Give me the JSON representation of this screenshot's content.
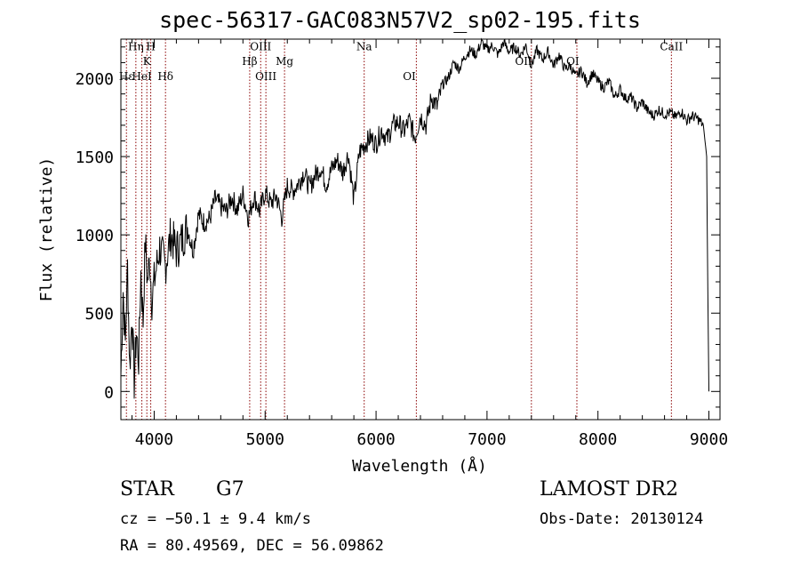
{
  "chart_data": {
    "type": "line",
    "title": "spec-56317-GAC083N57V2_sp02-195.fits",
    "xlabel": "Wavelength (Å)",
    "ylabel": "Flux (relative)",
    "xlim": [
      3700,
      9100
    ],
    "ylim": [
      -180,
      2250
    ],
    "xticks": [
      4000,
      5000,
      6000,
      7000,
      8000,
      9000
    ],
    "yticks": [
      0,
      500,
      1000,
      1500,
      2000
    ],
    "xtick_labels": [
      "4000",
      "5000",
      "6000",
      "7000",
      "8000",
      "9000"
    ],
    "ytick_labels": [
      "0",
      "500",
      "1000",
      "1500",
      "2000"
    ],
    "grid": false,
    "line_color": "#000000",
    "marker_color": "#8b0000",
    "spectrum": {
      "x": [
        3700,
        3720,
        3740,
        3760,
        3780,
        3800,
        3820,
        3840,
        3860,
        3880,
        3900,
        3920,
        3940,
        3960,
        3980,
        4000,
        4050,
        4100,
        4150,
        4200,
        4250,
        4300,
        4350,
        4400,
        4450,
        4500,
        4550,
        4600,
        4650,
        4700,
        4750,
        4800,
        4850,
        4900,
        4950,
        5000,
        5050,
        5100,
        5150,
        5200,
        5250,
        5300,
        5350,
        5400,
        5450,
        5500,
        5550,
        5600,
        5650,
        5700,
        5750,
        5800,
        5850,
        5900,
        5950,
        6000,
        6050,
        6100,
        6150,
        6200,
        6250,
        6300,
        6350,
        6400,
        6450,
        6500,
        6550,
        6600,
        6650,
        6700,
        6750,
        6800,
        6850,
        6900,
        6950,
        7000,
        7050,
        7100,
        7150,
        7200,
        7250,
        7300,
        7350,
        7400,
        7450,
        7500,
        7550,
        7600,
        7650,
        7700,
        7750,
        7800,
        7850,
        7900,
        7950,
        8000,
        8050,
        8100,
        8150,
        8200,
        8250,
        8300,
        8350,
        8400,
        8450,
        8500,
        8550,
        8600,
        8650,
        8700,
        8750,
        8800,
        8850,
        8900,
        8950,
        8980,
        8990,
        9000
      ],
      "y": [
        100,
        650,
        300,
        800,
        150,
        500,
        60,
        380,
        200,
        760,
        450,
        960,
        700,
        850,
        580,
        700,
        920,
        800,
        1000,
        900,
        970,
        1050,
        900,
        1130,
        1080,
        1100,
        1230,
        1180,
        1150,
        1240,
        1160,
        1260,
        1110,
        1250,
        1150,
        1270,
        1200,
        1250,
        1110,
        1310,
        1280,
        1330,
        1400,
        1300,
        1380,
        1430,
        1320,
        1420,
        1480,
        1400,
        1520,
        1220,
        1530,
        1580,
        1620,
        1580,
        1670,
        1610,
        1700,
        1720,
        1660,
        1730,
        1620,
        1760,
        1700,
        1880,
        1820,
        1960,
        2000,
        2100,
        2060,
        2140,
        2180,
        2150,
        2230,
        2180,
        2210,
        2150,
        2230,
        2170,
        2200,
        2150,
        2210,
        2080,
        2180,
        2120,
        2170,
        2080,
        2150,
        2060,
        2080,
        2010,
        2050,
        1970,
        2030,
        1980,
        1940,
        1980,
        1880,
        1930,
        1870,
        1880,
        1810,
        1850,
        1790,
        1760,
        1800,
        1770,
        1780,
        1750,
        1790,
        1730,
        1760,
        1740,
        1700,
        1500,
        650,
        0
      ]
    },
    "lines": [
      {
        "label": "Hη",
        "x": 3835,
        "y": 2180,
        "tier": "top"
      },
      {
        "label": "H",
        "x": 3969,
        "y": 2180,
        "tier": "top"
      },
      {
        "label": "K",
        "x": 3934,
        "y": 2085,
        "tier": "mid"
      },
      {
        "label": "OIII",
        "x": 4960,
        "y": 2180,
        "tier": "top"
      },
      {
        "label": "Na",
        "x": 5893,
        "y": 2180,
        "tier": "top"
      },
      {
        "label": "CaII",
        "x": 8662,
        "y": 2180,
        "tier": "top"
      },
      {
        "label": "Hβ",
        "x": 4861,
        "y": 2085,
        "tier": "mid"
      },
      {
        "label": "Mg",
        "x": 5175,
        "y": 2085,
        "tier": "mid"
      },
      {
        "label": "OII",
        "x": 7330,
        "y": 2085,
        "tier": "mid"
      },
      {
        "label": "OI",
        "x": 7773,
        "y": 2085,
        "tier": "mid"
      },
      {
        "label": "Hε",
        "x": 3750,
        "y": 1990,
        "tier": "low"
      },
      {
        "label": "HeI",
        "x": 3889,
        "y": 1990,
        "tier": "low"
      },
      {
        "label": "Hδ",
        "x": 4102,
        "y": 1990,
        "tier": "low"
      },
      {
        "label": "OIII",
        "x": 5007,
        "y": 1990,
        "tier": "low"
      },
      {
        "label": "OI",
        "x": 6300,
        "y": 1990,
        "tier": "low"
      }
    ],
    "marker_x": [
      3750,
      3835,
      3889,
      3934,
      3969,
      4102,
      4861,
      4960,
      5007,
      5175,
      5893,
      6363,
      7400,
      7810,
      8662
    ]
  },
  "info": {
    "obj_class": "STAR",
    "obj_subclass": "G7",
    "survey": "LAMOST DR2",
    "cz": "cz = −50.1 ± 9.4 km/s",
    "obs_date": "Obs-Date: 20130124",
    "radec": "RA =  80.49569, DEC =  56.09862"
  }
}
